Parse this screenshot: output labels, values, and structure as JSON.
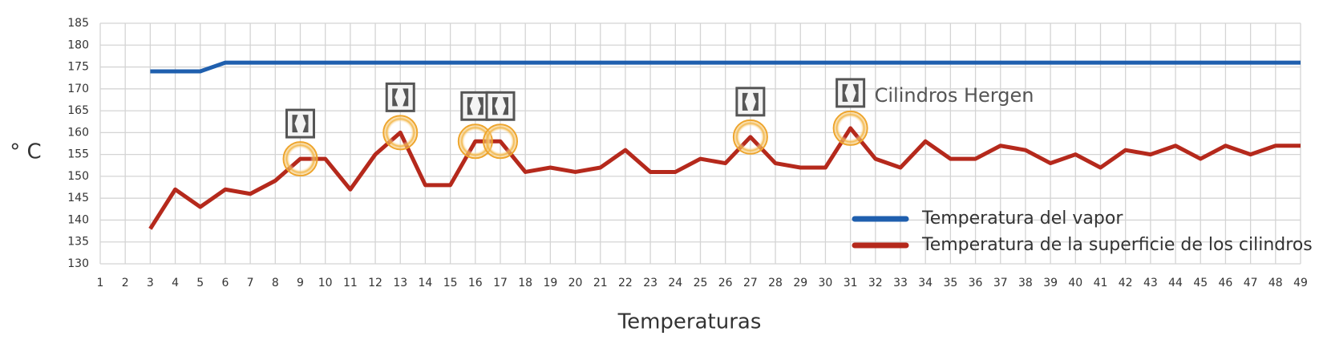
{
  "chart_data": {
    "type": "line",
    "x": [
      1,
      2,
      3,
      4,
      5,
      6,
      7,
      8,
      9,
      10,
      11,
      12,
      13,
      14,
      15,
      16,
      17,
      18,
      19,
      20,
      21,
      22,
      23,
      24,
      25,
      26,
      27,
      28,
      29,
      30,
      31,
      32,
      33,
      34,
      35,
      36,
      37,
      38,
      39,
      40,
      41,
      42,
      43,
      44,
      45,
      46,
      47,
      48,
      49
    ],
    "xlim": [
      1,
      49
    ],
    "xticks": [
      1,
      2,
      3,
      4,
      5,
      6,
      7,
      8,
      9,
      10,
      11,
      12,
      13,
      14,
      15,
      16,
      17,
      18,
      19,
      20,
      21,
      22,
      23,
      24,
      25,
      26,
      27,
      28,
      29,
      30,
      31,
      32,
      33,
      34,
      35,
      36,
      37,
      38,
      39,
      40,
      41,
      42,
      43,
      44,
      45,
      46,
      47,
      48,
      49
    ],
    "ylim": [
      130,
      185
    ],
    "yticks": [
      130,
      135,
      140,
      145,
      150,
      155,
      160,
      165,
      170,
      175,
      180,
      185
    ],
    "x_label": "Temperaturas",
    "y_label": "° C",
    "grid": true,
    "legend": "lower right",
    "series": [
      {
        "name": "Temperatura del vapor",
        "color": "#1f5fae",
        "values": [
          null,
          null,
          174,
          174,
          174,
          176,
          176,
          176,
          176,
          176,
          176,
          176,
          176,
          176,
          176,
          176,
          176,
          176,
          176,
          176,
          176,
          176,
          176,
          176,
          176,
          176,
          176,
          176,
          176,
          176,
          176,
          176,
          176,
          176,
          176,
          176,
          176,
          176,
          176,
          176,
          176,
          176,
          176,
          176,
          176,
          176,
          176,
          176,
          176
        ]
      },
      {
        "name": "Temperatura de la superficie de los cilindros",
        "color": "#b5291c",
        "values": [
          null,
          null,
          138,
          147,
          143,
          147,
          146,
          149,
          154,
          154,
          147,
          155,
          160,
          148,
          148,
          158,
          158,
          151,
          152,
          151,
          152,
          156,
          151,
          151,
          154,
          153,
          159,
          153,
          152,
          152,
          161,
          154,
          152,
          158,
          154,
          154,
          157,
          156,
          153,
          155,
          152,
          156,
          155,
          157,
          154,
          157,
          155,
          157,
          157
        ]
      }
    ],
    "annotation": {
      "text": "Cilindros Hergen",
      "highlight_x": [
        9,
        13,
        16,
        17,
        27,
        31
      ]
    }
  }
}
